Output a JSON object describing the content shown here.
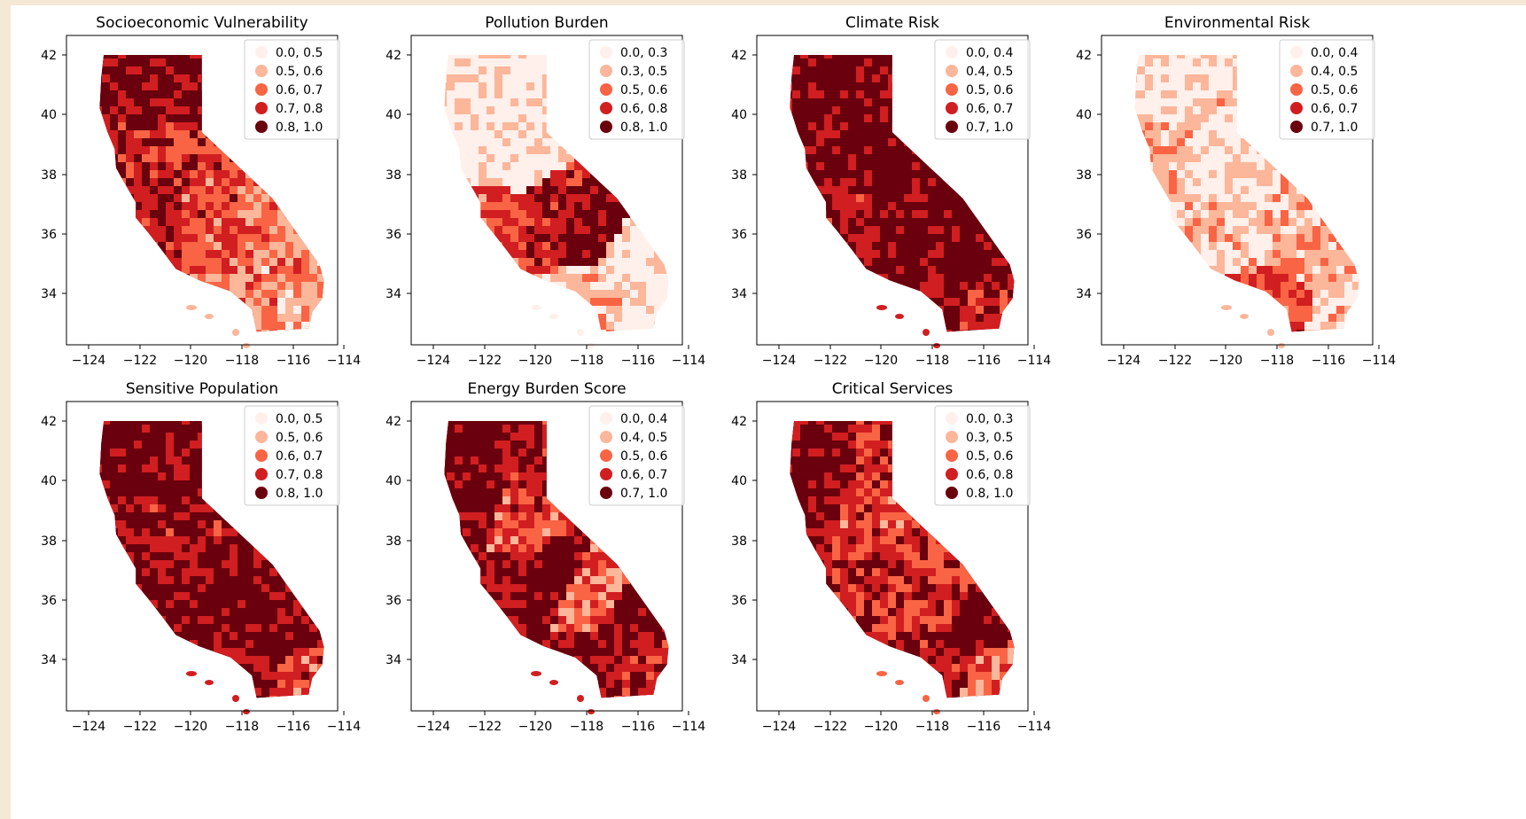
{
  "figure": {
    "panels": [
      {
        "title": "Socioeconomic Vulnerability",
        "legend": [
          "0.0, 0.5",
          "0.5, 0.6",
          "0.6, 0.7",
          "0.7, 0.8",
          "0.8, 1.0"
        ],
        "levels": [
          0.9,
          0.85,
          0.75,
          0.7,
          0.8,
          0.6,
          0.5,
          0.4,
          0.45,
          0.3
        ]
      },
      {
        "title": "Pollution Burden",
        "legend": [
          "0.0, 0.3",
          "0.3, 0.5",
          "0.5, 0.6",
          "0.6, 0.8",
          "0.8, 1.0"
        ],
        "levels": [
          0.1,
          0.15,
          0.05,
          0.1,
          0.55,
          0.75,
          0.9,
          0.15,
          0.3,
          0.05
        ]
      },
      {
        "title": "Climate Risk",
        "legend": [
          "0.0, 0.4",
          "0.4, 0.5",
          "0.5, 0.6",
          "0.6, 0.7",
          "0.7, 1.0"
        ],
        "levels": [
          0.95,
          0.9,
          0.85,
          0.95,
          0.8,
          0.9,
          0.95,
          0.95,
          0.85,
          0.7
        ]
      },
      {
        "title": "Environmental Risk",
        "legend": [
          "0.0, 0.4",
          "0.4, 0.5",
          "0.5, 0.6",
          "0.6, 0.7",
          "0.7, 1.0"
        ],
        "levels": [
          0.15,
          0.2,
          0.3,
          0.15,
          0.25,
          0.2,
          0.3,
          0.35,
          0.6,
          0.2
        ]
      },
      {
        "title": "Sensitive Population",
        "legend": [
          "0.0, 0.5",
          "0.5, 0.6",
          "0.6, 0.7",
          "0.7, 0.8",
          "0.8, 1.0"
        ],
        "levels": [
          0.95,
          0.9,
          0.9,
          0.8,
          0.85,
          0.9,
          0.95,
          0.95,
          0.85,
          0.6
        ]
      },
      {
        "title": "Energy Burden Score",
        "legend": [
          "0.0, 0.4",
          "0.4, 0.5",
          "0.5, 0.6",
          "0.6, 0.7",
          "0.7, 1.0"
        ],
        "levels": [
          0.95,
          0.75,
          0.9,
          0.6,
          0.85,
          0.95,
          0.5,
          0.9,
          0.85,
          0.7
        ]
      },
      {
        "title": "Critical Services",
        "legend": [
          "0.0, 0.3",
          "0.3, 0.5",
          "0.5, 0.6",
          "0.6, 0.8",
          "0.8, 1.0"
        ],
        "levels": [
          0.9,
          0.7,
          0.85,
          0.6,
          0.75,
          0.7,
          0.65,
          0.9,
          0.8,
          0.5
        ]
      }
    ],
    "xticks": [
      "−124",
      "−122",
      "−120",
      "−118",
      "−116",
      "−114"
    ],
    "yticks": [
      "42",
      "40",
      "38",
      "36",
      "34"
    ],
    "colors": {
      "ramp": [
        "#fff0eb",
        "#fcb69a",
        "#f96444",
        "#d11e20",
        "#6a000d"
      ],
      "frame": "#000000",
      "background": "#f4e8d6"
    }
  }
}
